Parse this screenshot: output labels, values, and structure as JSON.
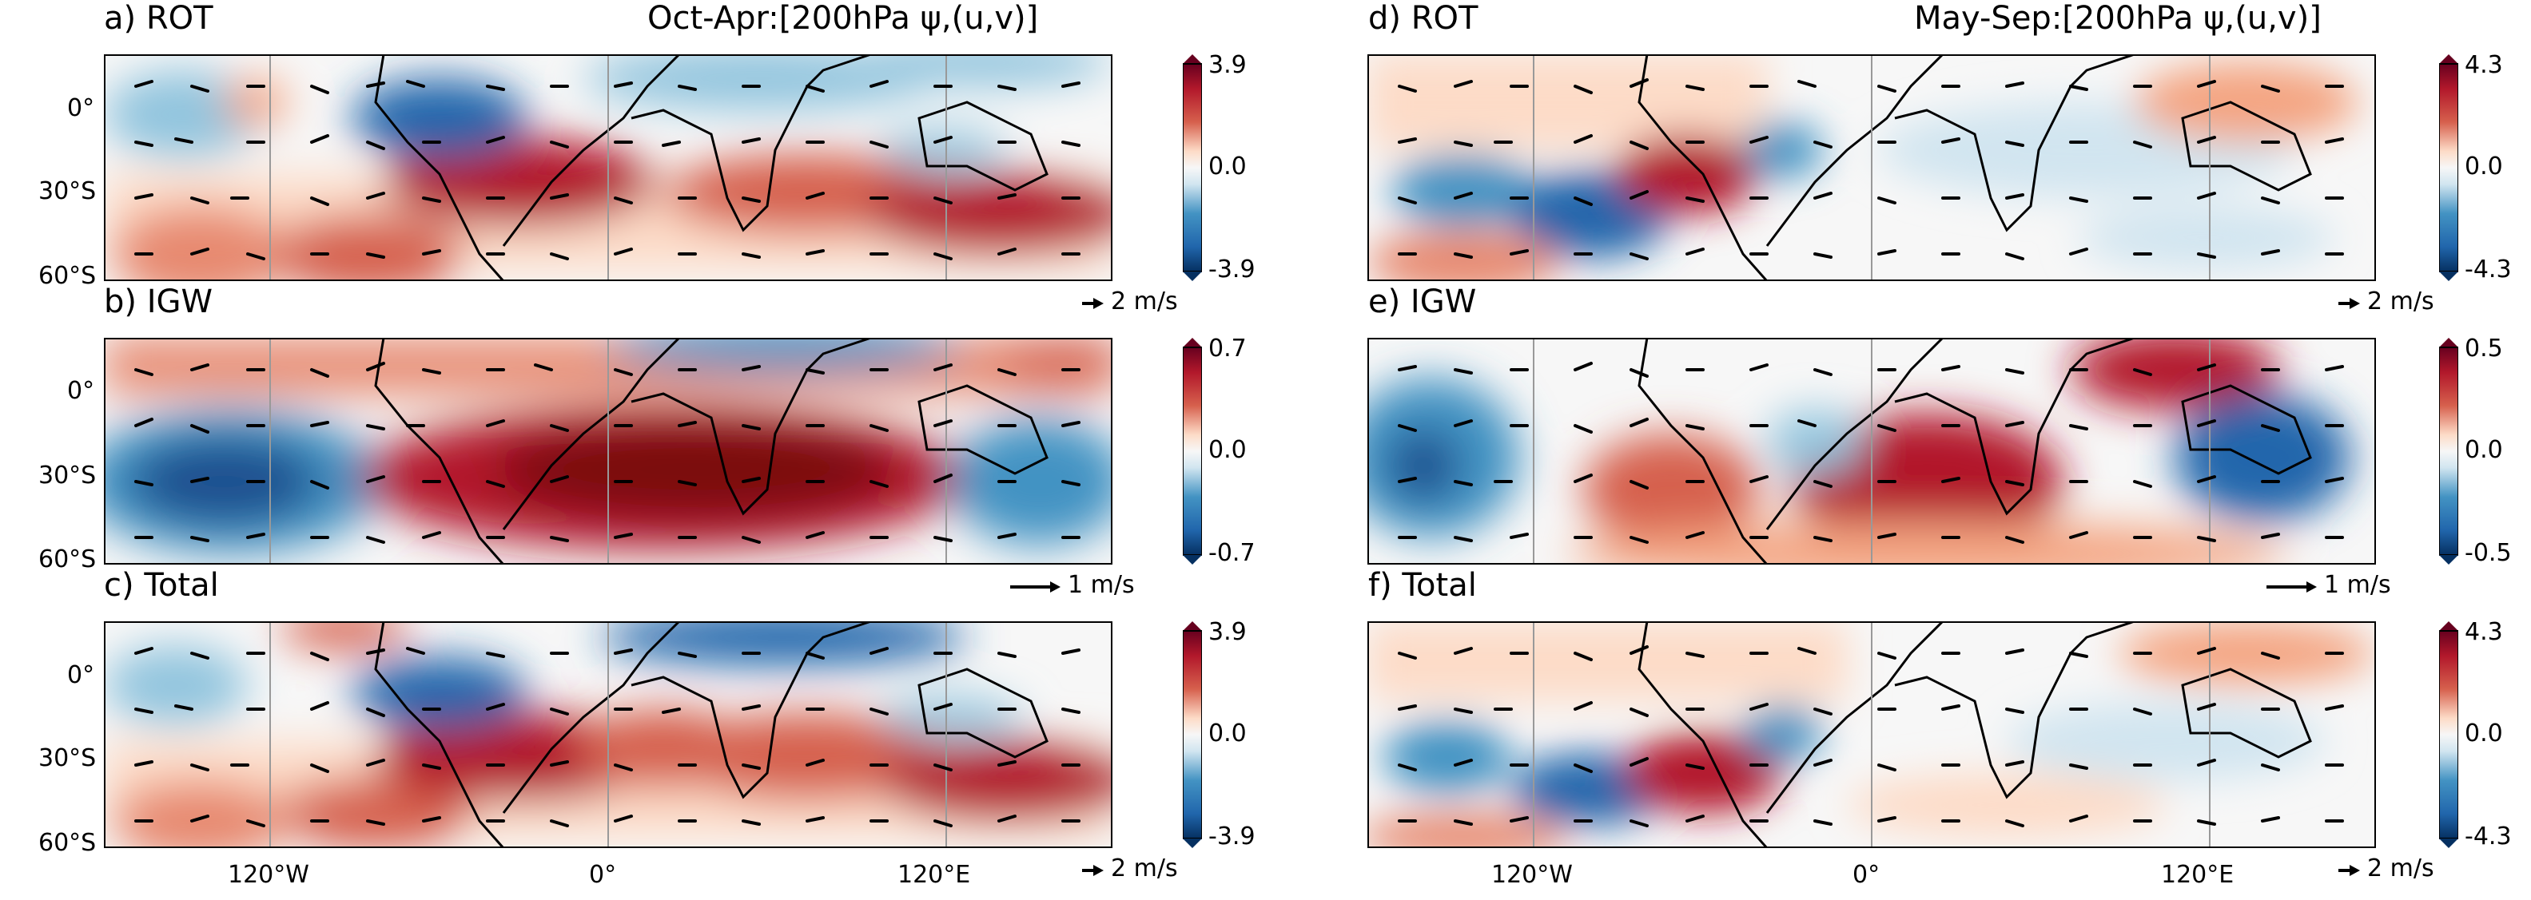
{
  "figure": {
    "left_column_title": "Oct-Apr:[200hPa ψ,(u,v)]",
    "right_column_title": "May-Sep:[200hPa ψ,(u,v)]",
    "lat_ticks": [
      "0°",
      "30°S",
      "60°S"
    ],
    "lon_ticks": [
      "120°W",
      "0°",
      "120°E"
    ]
  },
  "panels": [
    {
      "id": "a",
      "label": "a) ROT",
      "colorbar": {
        "max": "3.9",
        "mid": "0.0",
        "min": "-3.9"
      },
      "ref_vector": "2 m/s"
    },
    {
      "id": "b",
      "label": "b) IGW",
      "colorbar": {
        "max": "0.7",
        "mid": "0.0",
        "min": "-0.7"
      },
      "ref_vector": "1 m/s"
    },
    {
      "id": "c",
      "label": "c) Total",
      "colorbar": {
        "max": "3.9",
        "mid": "0.0",
        "min": "-3.9"
      },
      "ref_vector": "2 m/s"
    },
    {
      "id": "d",
      "label": "d) ROT",
      "colorbar": {
        "max": "4.3",
        "mid": "0.0",
        "min": "-4.3"
      },
      "ref_vector": "2 m/s"
    },
    {
      "id": "e",
      "label": "e) IGW",
      "colorbar": {
        "max": "0.5",
        "mid": "0.0",
        "min": "-0.5"
      },
      "ref_vector": "1 m/s"
    },
    {
      "id": "f",
      "label": "f) Total",
      "colorbar": {
        "max": "4.3",
        "mid": "0.0",
        "min": "-4.3"
      },
      "ref_vector": "2 m/s"
    }
  ],
  "colors": {
    "strong_positive": "#8b0a0a",
    "positive": "#d6604d",
    "weak_positive": "#fddbc7",
    "neutral": "#f7f7f7",
    "weak_negative": "#d1e5f0",
    "negative": "#4393c3",
    "strong_negative": "#1a4f8f"
  }
}
